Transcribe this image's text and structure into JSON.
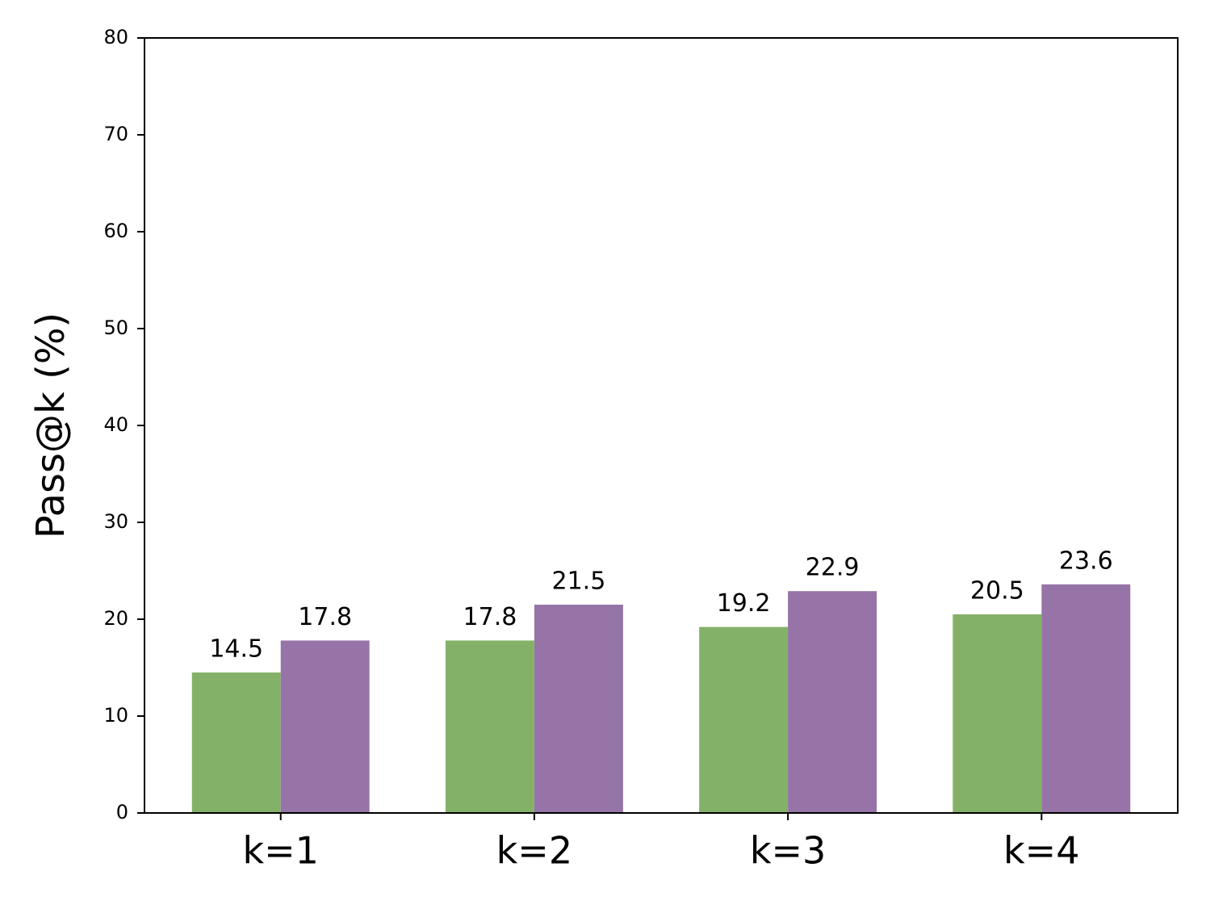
{
  "chart_data": {
    "type": "bar",
    "y_label": "Pass@k (%)",
    "categories": [
      "k=1",
      "k=2",
      "k=3",
      "k=4"
    ],
    "series": [
      {
        "color": "#84b168",
        "values": [
          14.5,
          17.8,
          19.2,
          20.5
        ]
      },
      {
        "color": "#9774a7",
        "values": [
          17.8,
          21.5,
          22.9,
          23.6
        ]
      }
    ],
    "ylim": [
      0,
      80
    ],
    "yticks": [
      0,
      10,
      20,
      30,
      40,
      50,
      60,
      70,
      80
    ],
    "grid": false,
    "data_labels": true
  }
}
